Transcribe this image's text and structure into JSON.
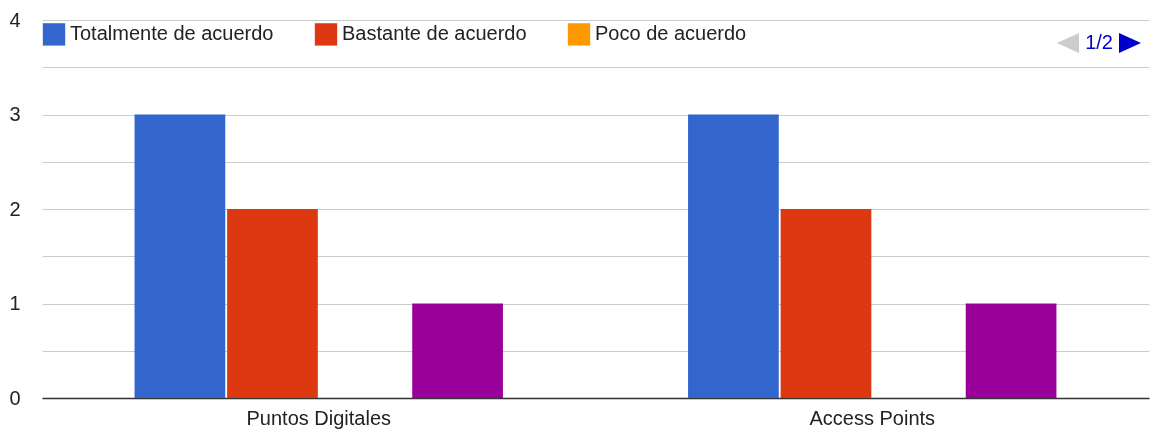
{
  "chart_data": {
    "type": "bar",
    "categories": [
      "Puntos Digitales",
      "Access Points"
    ],
    "series": [
      {
        "name": "Totalmente de acuerdo",
        "color": "#3366cc",
        "values": [
          3,
          3
        ]
      },
      {
        "name": "Bastante de acuerdo",
        "color": "#dc3912",
        "values": [
          2,
          2
        ]
      },
      {
        "name": "Poco de acuerdo",
        "color": "#ff9900",
        "values": [
          0,
          0
        ]
      },
      {
        "color": "#990099",
        "values": [
          1,
          1
        ]
      }
    ],
    "ylim": [
      0,
      4
    ],
    "yticks": [
      0,
      {
        "value": 0.5,
        "label": null
      },
      1,
      {
        "value": 1.5,
        "label": null
      },
      2,
      {
        "value": 2.5,
        "label": null
      },
      3,
      {
        "value": 3.5,
        "label": null
      },
      4
    ],
    "grid": true,
    "legend": "top",
    "annotations": [
      "1/2"
    ]
  }
}
